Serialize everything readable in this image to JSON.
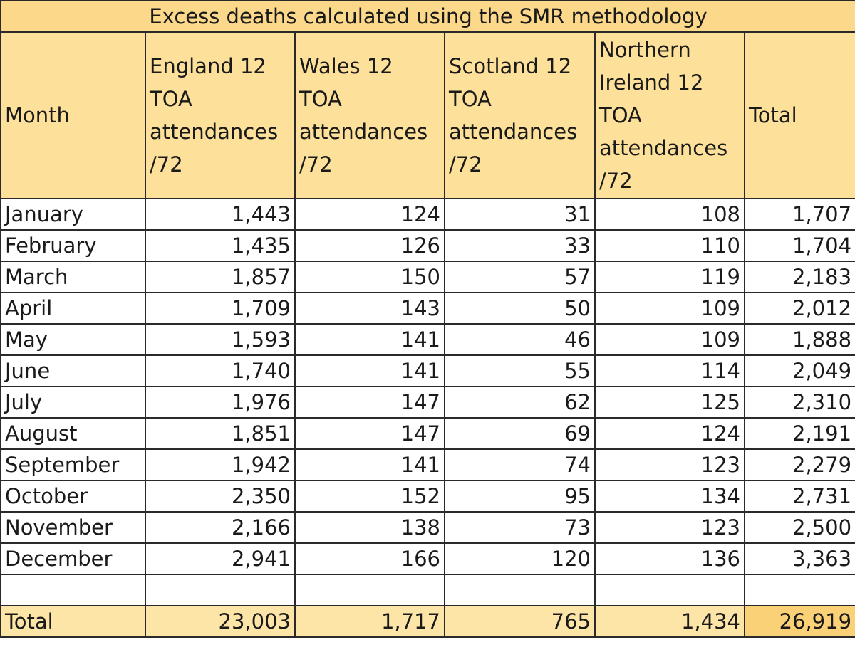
{
  "title": "Excess deaths calculated using the SMR methodology",
  "headers": [
    "Month",
    "England 12 TOA attendances /72",
    "Wales 12 TOA attendances /72",
    "Scotland  12 TOA attendances /72",
    "Northern Ireland 12 TOA attendances /72",
    "Total"
  ],
  "rows": [
    [
      "January",
      "1,443",
      "124",
      "31",
      "108",
      "1,707"
    ],
    [
      "February",
      "1,435",
      "126",
      "33",
      "110",
      "1,704"
    ],
    [
      "March",
      "1,857",
      "150",
      "57",
      "119",
      "2,183"
    ],
    [
      "April",
      "1,709",
      "143",
      "50",
      "109",
      "2,012"
    ],
    [
      "May",
      "1,593",
      "141",
      "46",
      "109",
      "1,888"
    ],
    [
      "June",
      "1,740",
      "141",
      "55",
      "114",
      "2,049"
    ],
    [
      "July",
      "1,976",
      "147",
      "62",
      "125",
      "2,310"
    ],
    [
      "August",
      "1,851",
      "147",
      "69",
      "124",
      "2,191"
    ],
    [
      "September",
      "1,942",
      "141",
      "74",
      "123",
      "2,279"
    ],
    [
      "October",
      "2,350",
      "152",
      "95",
      "134",
      "2,731"
    ],
    [
      "November",
      "2,166",
      "138",
      "73",
      "123",
      "2,500"
    ],
    [
      "December",
      "2,941",
      "166",
      "120",
      "136",
      "3,363"
    ]
  ],
  "total_row": [
    "Total",
    "23,003",
    "1,717",
    "765",
    "1,434",
    "26,919"
  ],
  "colors": {
    "title_bg": "#fbd88a",
    "header_bg": "#fde19a",
    "total_bg": "#fde5a8",
    "grand_total_bg": "#fbd177",
    "border": "#2a2a2a"
  }
}
